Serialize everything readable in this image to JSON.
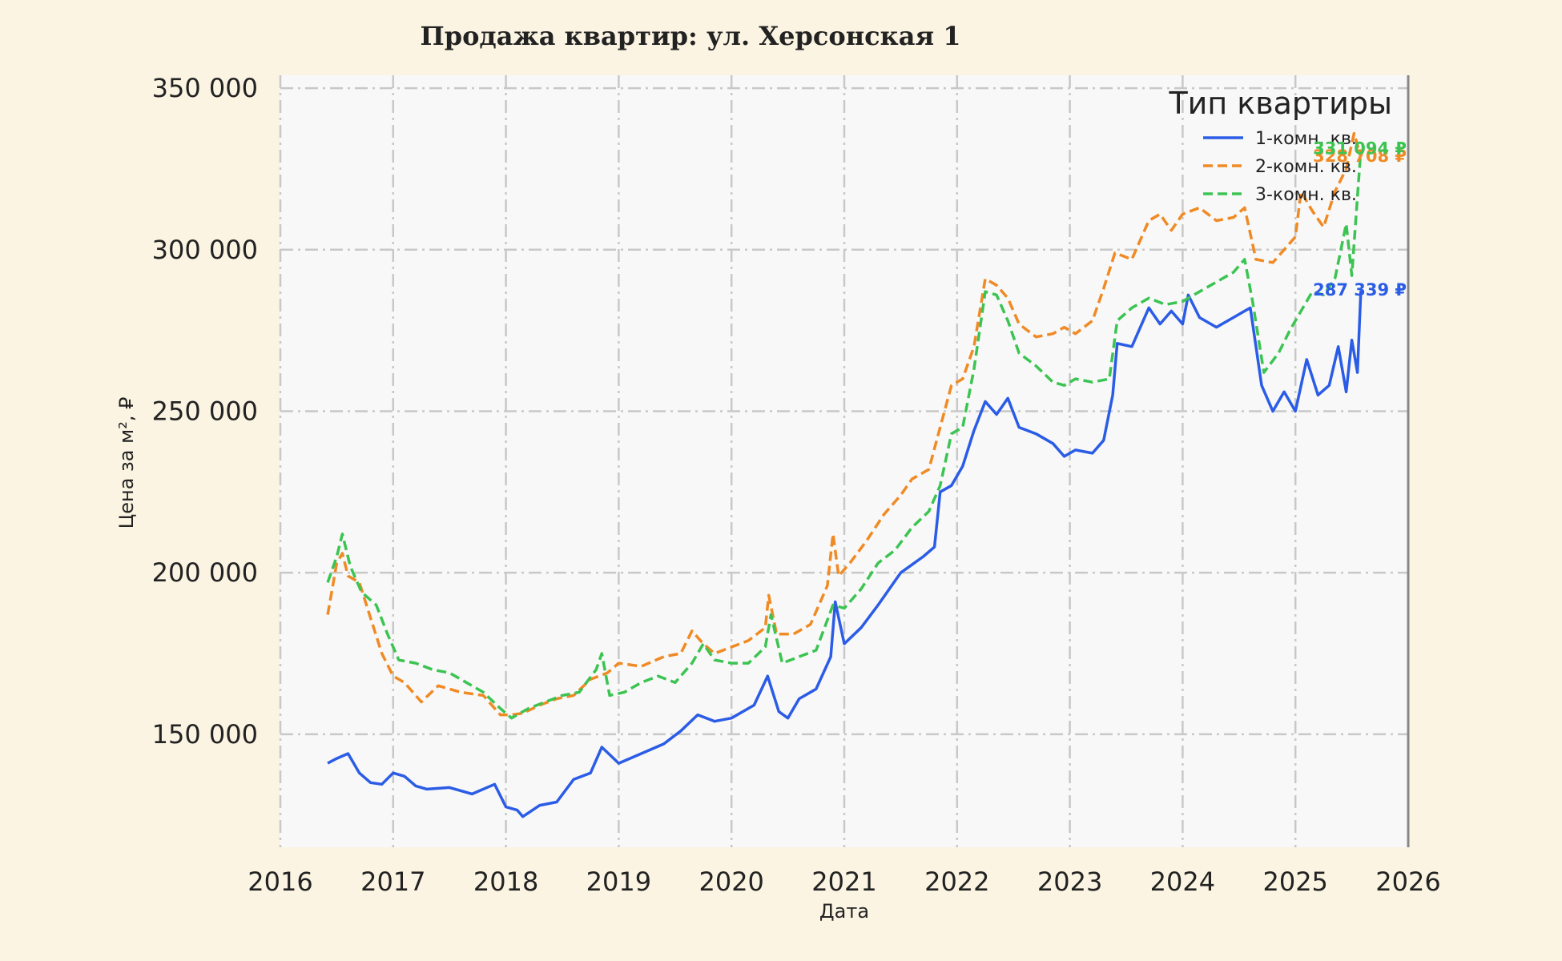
{
  "chart_data": {
    "type": "line",
    "title": "Продажа квартир: ул. Херсонская 1",
    "xlabel": "Дата",
    "ylabel": "Цена за м², ₽",
    "x_ticks": [
      "2016",
      "2017",
      "2018",
      "2019",
      "2020",
      "2021",
      "2022",
      "2023",
      "2024",
      "2025",
      "2026"
    ],
    "y_ticks": [
      "150 000",
      "200 000",
      "250 000",
      "300 000",
      "350 000"
    ],
    "y_tick_values": [
      150000,
      200000,
      250000,
      300000,
      350000
    ],
    "xlim": [
      2016.0,
      2026.0
    ],
    "ylim": [
      115000,
      354000
    ],
    "grid": true,
    "legend": {
      "title": "Тип квартиры",
      "placement": "top-right"
    },
    "series": [
      {
        "name": "1-комн. кв.",
        "color": "#2b5ce6",
        "dash": "solid",
        "end_label": "287 339 ₽",
        "points": [
          [
            2016.42,
            141000
          ],
          [
            2016.5,
            142500
          ],
          [
            2016.6,
            144000
          ],
          [
            2016.7,
            138000
          ],
          [
            2016.8,
            135000
          ],
          [
            2016.9,
            134500
          ],
          [
            2017.0,
            138000
          ],
          [
            2017.1,
            137000
          ],
          [
            2017.2,
            134000
          ],
          [
            2017.3,
            133000
          ],
          [
            2017.5,
            133500
          ],
          [
            2017.7,
            131500
          ],
          [
            2017.9,
            134500
          ],
          [
            2018.0,
            127500
          ],
          [
            2018.1,
            126500
          ],
          [
            2018.15,
            124500
          ],
          [
            2018.3,
            128000
          ],
          [
            2018.45,
            129000
          ],
          [
            2018.6,
            136000
          ],
          [
            2018.75,
            138000
          ],
          [
            2018.85,
            146000
          ],
          [
            2019.0,
            141000
          ],
          [
            2019.2,
            144000
          ],
          [
            2019.4,
            147000
          ],
          [
            2019.55,
            151000
          ],
          [
            2019.7,
            156000
          ],
          [
            2019.85,
            154000
          ],
          [
            2020.0,
            155000
          ],
          [
            2020.2,
            159000
          ],
          [
            2020.32,
            168000
          ],
          [
            2020.42,
            157000
          ],
          [
            2020.5,
            155000
          ],
          [
            2020.6,
            161000
          ],
          [
            2020.75,
            164000
          ],
          [
            2020.88,
            174000
          ],
          [
            2020.92,
            191000
          ],
          [
            2021.0,
            178000
          ],
          [
            2021.15,
            183000
          ],
          [
            2021.3,
            190000
          ],
          [
            2021.5,
            200000
          ],
          [
            2021.7,
            205000
          ],
          [
            2021.8,
            208000
          ],
          [
            2021.85,
            225000
          ],
          [
            2021.95,
            227000
          ],
          [
            2022.05,
            233000
          ],
          [
            2022.15,
            244000
          ],
          [
            2022.25,
            253000
          ],
          [
            2022.35,
            249000
          ],
          [
            2022.45,
            254000
          ],
          [
            2022.55,
            245000
          ],
          [
            2022.7,
            243000
          ],
          [
            2022.85,
            240000
          ],
          [
            2022.95,
            236000
          ],
          [
            2023.05,
            238000
          ],
          [
            2023.2,
            237000
          ],
          [
            2023.3,
            241000
          ],
          [
            2023.38,
            255000
          ],
          [
            2023.42,
            271000
          ],
          [
            2023.55,
            270000
          ],
          [
            2023.7,
            282000
          ],
          [
            2023.8,
            277000
          ],
          [
            2023.9,
            281000
          ],
          [
            2024.0,
            277000
          ],
          [
            2024.05,
            286000
          ],
          [
            2024.15,
            279000
          ],
          [
            2024.3,
            276000
          ],
          [
            2024.45,
            279000
          ],
          [
            2024.55,
            281000
          ],
          [
            2024.6,
            282000
          ],
          [
            2024.7,
            258000
          ],
          [
            2024.8,
            250000
          ],
          [
            2024.9,
            256000
          ],
          [
            2025.0,
            250000
          ],
          [
            2025.1,
            266000
          ],
          [
            2025.2,
            255000
          ],
          [
            2025.3,
            258000
          ],
          [
            2025.38,
            270000
          ],
          [
            2025.45,
            256000
          ],
          [
            2025.5,
            272000
          ],
          [
            2025.55,
            262000
          ],
          [
            2025.58,
            287339
          ]
        ]
      },
      {
        "name": "2-комн. кв.",
        "color": "#f08a24",
        "dash": "dashed",
        "end_label": "328 708 ₽",
        "points": [
          [
            2016.42,
            187000
          ],
          [
            2016.5,
            203000
          ],
          [
            2016.55,
            206000
          ],
          [
            2016.6,
            199000
          ],
          [
            2016.7,
            197000
          ],
          [
            2016.8,
            186000
          ],
          [
            2016.9,
            175000
          ],
          [
            2017.0,
            168000
          ],
          [
            2017.1,
            166000
          ],
          [
            2017.25,
            160000
          ],
          [
            2017.4,
            165000
          ],
          [
            2017.6,
            163000
          ],
          [
            2017.8,
            162000
          ],
          [
            2017.95,
            156000
          ],
          [
            2018.05,
            156000
          ],
          [
            2018.15,
            156500
          ],
          [
            2018.3,
            159000
          ],
          [
            2018.45,
            161000
          ],
          [
            2018.6,
            162000
          ],
          [
            2018.75,
            167000
          ],
          [
            2018.9,
            169000
          ],
          [
            2019.0,
            172000
          ],
          [
            2019.2,
            171000
          ],
          [
            2019.4,
            174000
          ],
          [
            2019.55,
            175000
          ],
          [
            2019.65,
            182000
          ],
          [
            2019.75,
            178000
          ],
          [
            2019.85,
            175000
          ],
          [
            2020.0,
            177000
          ],
          [
            2020.15,
            179000
          ],
          [
            2020.3,
            183000
          ],
          [
            2020.33,
            193000
          ],
          [
            2020.4,
            181000
          ],
          [
            2020.55,
            181000
          ],
          [
            2020.7,
            184000
          ],
          [
            2020.85,
            196000
          ],
          [
            2020.9,
            212000
          ],
          [
            2020.95,
            199000
          ],
          [
            2021.05,
            203000
          ],
          [
            2021.2,
            210000
          ],
          [
            2021.35,
            218000
          ],
          [
            2021.5,
            224000
          ],
          [
            2021.6,
            229000
          ],
          [
            2021.75,
            232000
          ],
          [
            2021.85,
            245000
          ],
          [
            2021.95,
            258000
          ],
          [
            2022.05,
            260000
          ],
          [
            2022.15,
            270000
          ],
          [
            2022.25,
            291000
          ],
          [
            2022.35,
            289000
          ],
          [
            2022.45,
            285000
          ],
          [
            2022.55,
            277000
          ],
          [
            2022.7,
            273000
          ],
          [
            2022.85,
            274000
          ],
          [
            2022.95,
            276000
          ],
          [
            2023.05,
            274000
          ],
          [
            2023.2,
            278000
          ],
          [
            2023.3,
            288000
          ],
          [
            2023.4,
            299000
          ],
          [
            2023.55,
            297000
          ],
          [
            2023.7,
            309000
          ],
          [
            2023.8,
            311000
          ],
          [
            2023.9,
            306000
          ],
          [
            2024.0,
            311000
          ],
          [
            2024.15,
            313000
          ],
          [
            2024.3,
            309000
          ],
          [
            2024.45,
            310000
          ],
          [
            2024.55,
            313000
          ],
          [
            2024.65,
            297000
          ],
          [
            2024.8,
            296000
          ],
          [
            2024.9,
            300000
          ],
          [
            2025.0,
            304000
          ],
          [
            2025.05,
            318000
          ],
          [
            2025.15,
            312000
          ],
          [
            2025.25,
            307000
          ],
          [
            2025.35,
            318000
          ],
          [
            2025.45,
            325000
          ],
          [
            2025.52,
            336000
          ],
          [
            2025.58,
            328708
          ]
        ]
      },
      {
        "name": "3-комн. кв.",
        "color": "#3cc452",
        "dash": "dashed",
        "end_label": "331 094 ₽",
        "points": [
          [
            2016.42,
            197000
          ],
          [
            2016.5,
            205000
          ],
          [
            2016.55,
            212000
          ],
          [
            2016.62,
            202000
          ],
          [
            2016.72,
            194000
          ],
          [
            2016.85,
            190000
          ],
          [
            2016.95,
            181000
          ],
          [
            2017.05,
            173000
          ],
          [
            2017.2,
            172000
          ],
          [
            2017.35,
            170000
          ],
          [
            2017.5,
            169000
          ],
          [
            2017.65,
            166000
          ],
          [
            2017.8,
            163000
          ],
          [
            2017.95,
            158000
          ],
          [
            2018.05,
            155000
          ],
          [
            2018.2,
            158000
          ],
          [
            2018.35,
            160000
          ],
          [
            2018.5,
            162000
          ],
          [
            2018.65,
            163000
          ],
          [
            2018.8,
            170000
          ],
          [
            2018.85,
            175000
          ],
          [
            2018.92,
            162000
          ],
          [
            2019.05,
            163000
          ],
          [
            2019.2,
            166000
          ],
          [
            2019.35,
            168000
          ],
          [
            2019.5,
            166000
          ],
          [
            2019.65,
            172000
          ],
          [
            2019.75,
            178000
          ],
          [
            2019.85,
            173000
          ],
          [
            2020.0,
            172000
          ],
          [
            2020.15,
            172000
          ],
          [
            2020.3,
            177000
          ],
          [
            2020.35,
            187000
          ],
          [
            2020.45,
            172000
          ],
          [
            2020.6,
            174000
          ],
          [
            2020.75,
            176000
          ],
          [
            2020.9,
            190000
          ],
          [
            2021.0,
            189000
          ],
          [
            2021.15,
            195000
          ],
          [
            2021.3,
            203000
          ],
          [
            2021.45,
            207000
          ],
          [
            2021.6,
            214000
          ],
          [
            2021.75,
            219000
          ],
          [
            2021.85,
            227000
          ],
          [
            2021.95,
            243000
          ],
          [
            2022.05,
            245000
          ],
          [
            2022.15,
            263000
          ],
          [
            2022.25,
            287000
          ],
          [
            2022.35,
            286000
          ],
          [
            2022.45,
            278000
          ],
          [
            2022.55,
            268000
          ],
          [
            2022.7,
            264000
          ],
          [
            2022.85,
            259000
          ],
          [
            2022.95,
            258000
          ],
          [
            2023.05,
            260000
          ],
          [
            2023.2,
            259000
          ],
          [
            2023.35,
            260000
          ],
          [
            2023.42,
            278000
          ],
          [
            2023.55,
            282000
          ],
          [
            2023.7,
            285000
          ],
          [
            2023.85,
            283000
          ],
          [
            2024.0,
            284000
          ],
          [
            2024.15,
            287000
          ],
          [
            2024.3,
            290000
          ],
          [
            2024.45,
            293000
          ],
          [
            2024.55,
            297000
          ],
          [
            2024.62,
            284000
          ],
          [
            2024.72,
            262000
          ],
          [
            2024.85,
            268000
          ],
          [
            2024.95,
            275000
          ],
          [
            2025.05,
            281000
          ],
          [
            2025.15,
            287000
          ],
          [
            2025.25,
            286000
          ],
          [
            2025.35,
            291000
          ],
          [
            2025.45,
            308000
          ],
          [
            2025.5,
            292000
          ],
          [
            2025.58,
            331094
          ]
        ]
      }
    ]
  }
}
